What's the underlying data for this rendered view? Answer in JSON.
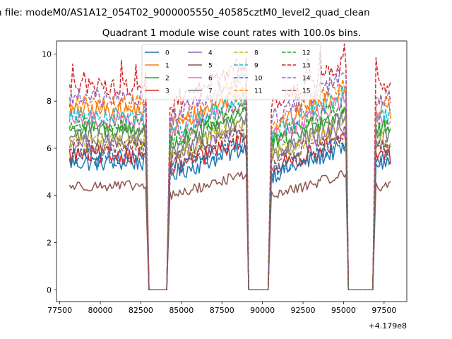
{
  "chart_data": {
    "type": "line",
    "suptitle": "n file: modeM0/AS1A12_054T02_9000005550_40585cztM0_level2_quad_clean",
    "title": "Quadrant 1 module wise count rates with 100.0s bins.",
    "xlabel": "",
    "ylabel": "",
    "x_offset_label": "+4.179e8",
    "xlim": [
      77300,
      98900
    ],
    "ylim": [
      -0.5,
      10.55
    ],
    "x_ticks": [
      77500,
      80000,
      82500,
      85000,
      87500,
      90000,
      92500,
      95000,
      97500
    ],
    "x_tick_labels": [
      "77500",
      "80000",
      "82500",
      "85000",
      "87500",
      "90000",
      "92500",
      "95000",
      "97500"
    ],
    "y_ticks": [
      0,
      2,
      4,
      6,
      8,
      10
    ],
    "y_tick_labels": [
      "0",
      "2",
      "4",
      "6",
      "8",
      "10"
    ],
    "grid": false,
    "legend_position": "top-center",
    "legend_columns": 4,
    "segments": [
      {
        "x0": 78100,
        "x1": 82850,
        "shape": "flat"
      },
      {
        "x0": 83000,
        "x1": 84150,
        "shape": "zero"
      },
      {
        "x0": 84300,
        "x1": 89000,
        "shape": "rise"
      },
      {
        "x0": 89150,
        "x1": 90400,
        "shape": "zero"
      },
      {
        "x0": 90550,
        "x1": 95150,
        "shape": "rise"
      },
      {
        "x0": 95300,
        "x1": 96850,
        "shape": "zero"
      },
      {
        "x0": 97000,
        "x1": 97950,
        "shape": "flat"
      }
    ],
    "series": [
      {
        "name": "0",
        "color": "#1f77b4",
        "dash": "solid",
        "level": 5.4
      },
      {
        "name": "1",
        "color": "#ff7f0e",
        "dash": "solid",
        "level": 7.6
      },
      {
        "name": "2",
        "color": "#2ca02c",
        "dash": "solid",
        "level": 6.8
      },
      {
        "name": "3",
        "color": "#d62728",
        "dash": "solid",
        "level": 5.7
      },
      {
        "name": "4",
        "color": "#9467bd",
        "dash": "solid",
        "level": 6.2
      },
      {
        "name": "5",
        "color": "#8c564b",
        "dash": "solid",
        "level": 4.4
      },
      {
        "name": "6",
        "color": "#e377c2",
        "dash": "solid",
        "level": 7.2
      },
      {
        "name": "7",
        "color": "#7f7f7f",
        "dash": "solid",
        "level": 6.5
      },
      {
        "name": "8",
        "color": "#bcbd22",
        "dash": "dashed",
        "level": 6.3
      },
      {
        "name": "9",
        "color": "#17becf",
        "dash": "dashed",
        "level": 7.4
      },
      {
        "name": "10",
        "color": "#1f77b4",
        "dash": "dashed",
        "level": 5.6
      },
      {
        "name": "11",
        "color": "#ff7f0e",
        "dash": "dashed",
        "level": 7.9
      },
      {
        "name": "12",
        "color": "#2ca02c",
        "dash": "dashed",
        "level": 7.0
      },
      {
        "name": "13",
        "color": "#d62728",
        "dash": "dashed",
        "level": 8.6
      },
      {
        "name": "14",
        "color": "#9467bd",
        "dash": "dashed",
        "level": 8.1
      },
      {
        "name": "15",
        "color": "#8c564b",
        "dash": "dashed",
        "level": 6.0
      }
    ]
  }
}
